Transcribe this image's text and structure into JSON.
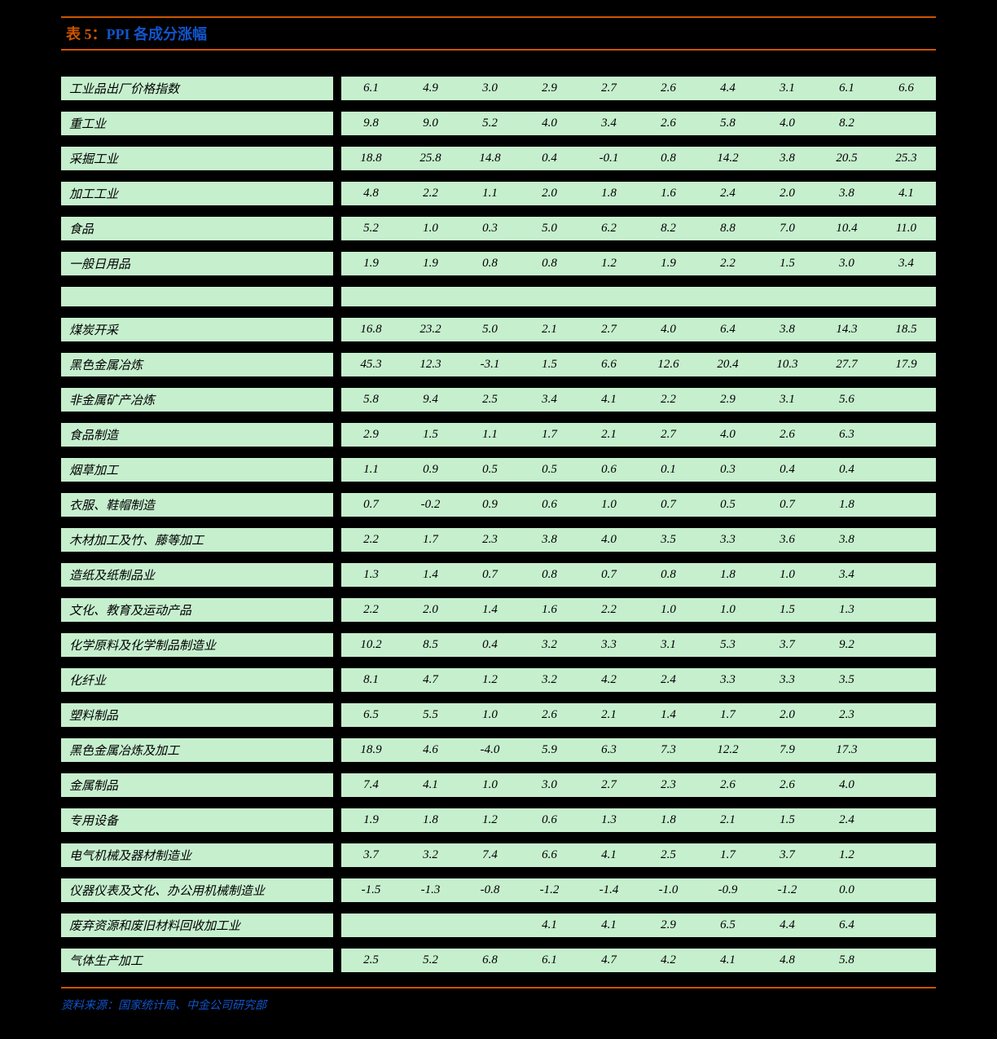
{
  "title_prefix": "表 5：",
  "title": "PPI 各成分涨幅",
  "source": "资料来源：国家统计局、中金公司研究部",
  "table": {
    "col_count": 10,
    "rows": [
      {
        "label": "工业品出厂价格指数",
        "values": [
          "6.1",
          "4.9",
          "3.0",
          "2.9",
          "2.7",
          "2.6",
          "4.4",
          "3.1",
          "6.1",
          "6.6"
        ]
      },
      {
        "label": "重工业",
        "values": [
          "9.8",
          "9.0",
          "5.2",
          "4.0",
          "3.4",
          "2.6",
          "5.8",
          "4.0",
          "8.2",
          ""
        ]
      },
      {
        "label": "采掘工业",
        "values": [
          "18.8",
          "25.8",
          "14.8",
          "0.4",
          "-0.1",
          "0.8",
          "14.2",
          "3.8",
          "20.5",
          "25.3"
        ]
      },
      {
        "label": "加工工业",
        "values": [
          "4.8",
          "2.2",
          "1.1",
          "2.0",
          "1.8",
          "1.6",
          "2.4",
          "2.0",
          "3.8",
          "4.1"
        ]
      },
      {
        "label": "食品",
        "values": [
          "5.2",
          "1.0",
          "0.3",
          "5.0",
          "6.2",
          "8.2",
          "8.8",
          "7.0",
          "10.4",
          "11.0"
        ]
      },
      {
        "label": "一般日用品",
        "values": [
          "1.9",
          "1.9",
          "0.8",
          "0.8",
          "1.2",
          "1.9",
          "2.2",
          "1.5",
          "3.0",
          "3.4"
        ]
      },
      {
        "label": "",
        "values": [
          "",
          "",
          "",
          "",
          "",
          "",
          "",
          "",
          "",
          ""
        ]
      },
      {
        "label": "煤炭开采",
        "values": [
          "16.8",
          "23.2",
          "5.0",
          "2.1",
          "2.7",
          "4.0",
          "6.4",
          "3.8",
          "14.3",
          "18.5"
        ]
      },
      {
        "label": "黑色金属冶炼",
        "values": [
          "45.3",
          "12.3",
          "-3.1",
          "1.5",
          "6.6",
          "12.6",
          "20.4",
          "10.3",
          "27.7",
          "17.9"
        ]
      },
      {
        "label": "非金属矿产冶炼",
        "values": [
          "5.8",
          "9.4",
          "2.5",
          "3.4",
          "4.1",
          "2.2",
          "2.9",
          "3.1",
          "5.6",
          ""
        ]
      },
      {
        "label": "食品制造",
        "values": [
          "2.9",
          "1.5",
          "1.1",
          "1.7",
          "2.1",
          "2.7",
          "4.0",
          "2.6",
          "6.3",
          ""
        ]
      },
      {
        "label": "烟草加工",
        "values": [
          "1.1",
          "0.9",
          "0.5",
          "0.5",
          "0.6",
          "0.1",
          "0.3",
          "0.4",
          "0.4",
          ""
        ]
      },
      {
        "label": "衣服、鞋帽制造",
        "values": [
          "0.7",
          "-0.2",
          "0.9",
          "0.6",
          "1.0",
          "0.7",
          "0.5",
          "0.7",
          "1.8",
          ""
        ]
      },
      {
        "label": "木材加工及竹、藤等加工",
        "values": [
          "2.2",
          "1.7",
          "2.3",
          "3.8",
          "4.0",
          "3.5",
          "3.3",
          "3.6",
          "3.8",
          ""
        ]
      },
      {
        "label": "造纸及纸制品业",
        "values": [
          "1.3",
          "1.4",
          "0.7",
          "0.8",
          "0.7",
          "0.8",
          "1.8",
          "1.0",
          "3.4",
          ""
        ]
      },
      {
        "label": "文化、教育及运动产品",
        "values": [
          "2.2",
          "2.0",
          "1.4",
          "1.6",
          "2.2",
          "1.0",
          "1.0",
          "1.5",
          "1.3",
          ""
        ]
      },
      {
        "label": "化学原料及化学制品制造业",
        "values": [
          "10.2",
          "8.5",
          "0.4",
          "3.2",
          "3.3",
          "3.1",
          "5.3",
          "3.7",
          "9.2",
          ""
        ]
      },
      {
        "label": "化纤业",
        "values": [
          "8.1",
          "4.7",
          "1.2",
          "3.2",
          "4.2",
          "2.4",
          "3.3",
          "3.3",
          "3.5",
          ""
        ]
      },
      {
        "label": "塑料制品",
        "values": [
          "6.5",
          "5.5",
          "1.0",
          "2.6",
          "2.1",
          "1.4",
          "1.7",
          "2.0",
          "2.3",
          ""
        ]
      },
      {
        "label": "黑色金属冶炼及加工",
        "values": [
          "18.9",
          "4.6",
          "-4.0",
          "5.9",
          "6.3",
          "7.3",
          "12.2",
          "7.9",
          "17.3",
          ""
        ]
      },
      {
        "label": "金属制品",
        "values": [
          "7.4",
          "4.1",
          "1.0",
          "3.0",
          "2.7",
          "2.3",
          "2.6",
          "2.6",
          "4.0",
          ""
        ]
      },
      {
        "label": "专用设备",
        "values": [
          "1.9",
          "1.8",
          "1.2",
          "0.6",
          "1.3",
          "1.8",
          "2.1",
          "1.5",
          "2.4",
          ""
        ]
      },
      {
        "label": "电气机械及器材制造业",
        "values": [
          "3.7",
          "3.2",
          "7.4",
          "6.6",
          "4.1",
          "2.5",
          "1.7",
          "3.7",
          "1.2",
          ""
        ]
      },
      {
        "label": "仪器仪表及文化、办公用机械制造业",
        "values": [
          "-1.5",
          "-1.3",
          "-0.8",
          "-1.2",
          "-1.4",
          "-1.0",
          "-0.9",
          "-1.2",
          "0.0",
          ""
        ]
      },
      {
        "label": "废弃资源和废旧材料回收加工业",
        "values": [
          "",
          "",
          "",
          "4.1",
          "4.1",
          "2.9",
          "6.5",
          "4.4",
          "6.4",
          ""
        ]
      },
      {
        "label": "气体生产加工",
        "values": [
          "2.5",
          "5.2",
          "6.8",
          "6.1",
          "4.7",
          "4.2",
          "4.1",
          "4.8",
          "5.8",
          ""
        ]
      }
    ]
  },
  "colors": {
    "background": "#000000",
    "cell_bg": "#c6efce",
    "accent": "#cc5500",
    "title_text": "#1155cc",
    "cell_text": "#000000"
  }
}
